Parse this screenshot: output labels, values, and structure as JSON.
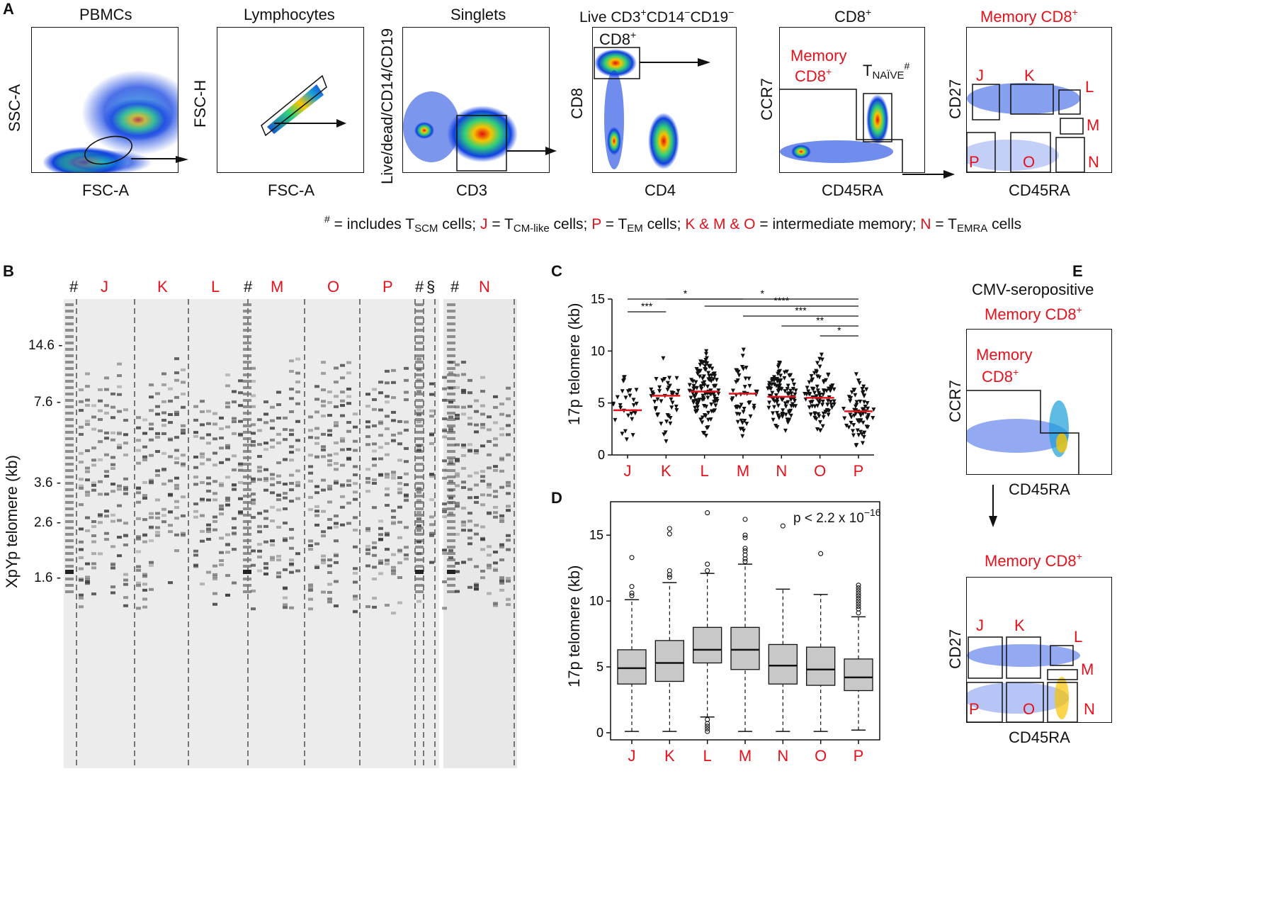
{
  "panelA": {
    "letter": "A",
    "plots": [
      {
        "title": "PBMCs",
        "xlabel": "FSC-A",
        "ylabel": "SSC-A"
      },
      {
        "title": "Lymphocytes",
        "xlabel": "FSC-A",
        "ylabel": "FSC-H"
      },
      {
        "title": "Singlets",
        "xlabel": "CD3",
        "ylabel": "Live/dead/CD14/CD19"
      },
      {
        "title": "Live CD3+CD14−CD19−",
        "xlabel": "CD4",
        "ylabel": "CD8",
        "gate_label": "CD8+"
      },
      {
        "title": "CD8+",
        "xlabel": "CD45RA",
        "ylabel": "CCR7",
        "gate_label_memory_line1": "Memory",
        "gate_label_memory_line2": "CD8+",
        "gate_label_naive": "TNAÏVE#"
      },
      {
        "title": "Memory CD8+",
        "xlabel": "CD45RA",
        "ylabel": "CD27",
        "gates": [
          "J",
          "K",
          "L",
          "M",
          "P",
          "O",
          "N"
        ]
      }
    ],
    "legend": {
      "hash": "#",
      "hash_text_1": "= includes T",
      "hash_sub": "SCM",
      "hash_text_2": "cells;",
      "j": "J",
      "j_text_1": "= T",
      "j_sub": "CM-like",
      "j_text_2": "cells;",
      "p": "P",
      "p_text_1": "= T",
      "p_sub": "EM",
      "p_text_2": "cells;",
      "kmo": "K & M & O",
      "kmo_text": "= intermediate memory;",
      "n": "N",
      "n_text_1": "= T",
      "n_sub": "EMRA",
      "n_text_2": "cells"
    }
  },
  "panelB": {
    "letter": "B",
    "ylabel": "XpYp telomere (kb)",
    "yticks": [
      "14.6 -",
      "7.6 -",
      "3.6 -",
      "2.6 -",
      "1.6 -"
    ],
    "lane_labels": [
      "#",
      "J",
      "K",
      "L",
      "#",
      "M",
      "O",
      "P",
      "#",
      "§",
      "#",
      "N"
    ]
  },
  "panelC": {
    "letter": "C",
    "chart_data": {
      "type": "scatter",
      "ylabel": "17p telomere (kb)",
      "categories": [
        "J",
        "K",
        "L",
        "M",
        "N",
        "O",
        "P"
      ],
      "medians": [
        4.3,
        5.7,
        6.1,
        5.9,
        5.6,
        5.5,
        4.2
      ],
      "ylim": [
        0,
        15
      ],
      "yticks": [
        0,
        5,
        10,
        15
      ],
      "significance": [
        {
          "from": "J",
          "to": "M",
          "label": "*"
        },
        {
          "from": "J",
          "to": "K",
          "label": "***"
        },
        {
          "from": "K",
          "to": "P",
          "label": "*"
        },
        {
          "from": "L",
          "to": "P",
          "label": "****"
        },
        {
          "from": "M",
          "to": "P",
          "label": "***"
        },
        {
          "from": "N",
          "to": "P",
          "label": "**"
        },
        {
          "from": "O",
          "to": "P",
          "label": "*"
        }
      ]
    }
  },
  "panelD": {
    "letter": "D",
    "chart_data": {
      "type": "box",
      "ylabel": "17p telomere (kb)",
      "categories": [
        "J",
        "K",
        "L",
        "M",
        "N",
        "O",
        "P"
      ],
      "q1": [
        3.7,
        3.9,
        5.3,
        4.8,
        3.7,
        3.6,
        3.2
      ],
      "median": [
        4.9,
        5.3,
        6.3,
        6.3,
        5.1,
        4.8,
        4.2
      ],
      "q3": [
        6.3,
        7.0,
        8.0,
        8.0,
        6.7,
        6.5,
        5.6
      ],
      "whisker_low": [
        0.1,
        0.1,
        1.2,
        0.1,
        0.1,
        0.1,
        0.2
      ],
      "whisker_high": [
        10.1,
        11.4,
        12.1,
        12.8,
        10.9,
        10.5,
        8.8
      ],
      "outliers": [
        [
          13.3,
          11.1,
          10.6,
          10.4
        ],
        [
          15.5,
          15.1,
          12.3,
          12.0,
          11.8
        ],
        [
          16.7,
          12.8,
          12.3,
          1.0,
          0.7,
          0.5,
          0.3,
          0.1
        ],
        [
          16.2,
          15.0,
          14.8,
          14.0,
          13.8,
          13.5,
          13.2,
          13.0
        ],
        [
          15.7
        ],
        [
          13.6
        ],
        [
          11.2,
          11.0,
          10.8,
          10.6,
          10.4,
          10.2,
          10.0,
          9.8,
          9.6,
          9.4,
          9.1
        ]
      ],
      "ylim": [
        0,
        17
      ],
      "yticks": [
        0,
        5,
        10,
        15
      ],
      "annotation_text": "p < 2.2 x 10",
      "annotation_exp": "−16"
    }
  },
  "panelE": {
    "letter": "E",
    "subtitle": "CMV-seropositive",
    "top_title": "Memory CD8+",
    "top_gate_line1": "Memory",
    "top_gate_line2": "CD8+",
    "top_xlabel": "CD45RA",
    "top_ylabel": "CCR7",
    "bottom_title": "Memory CD8+",
    "bottom_xlabel": "CD45RA",
    "bottom_ylabel": "CD27",
    "gates": [
      "J",
      "K",
      "L",
      "M",
      "P",
      "O",
      "N"
    ]
  }
}
